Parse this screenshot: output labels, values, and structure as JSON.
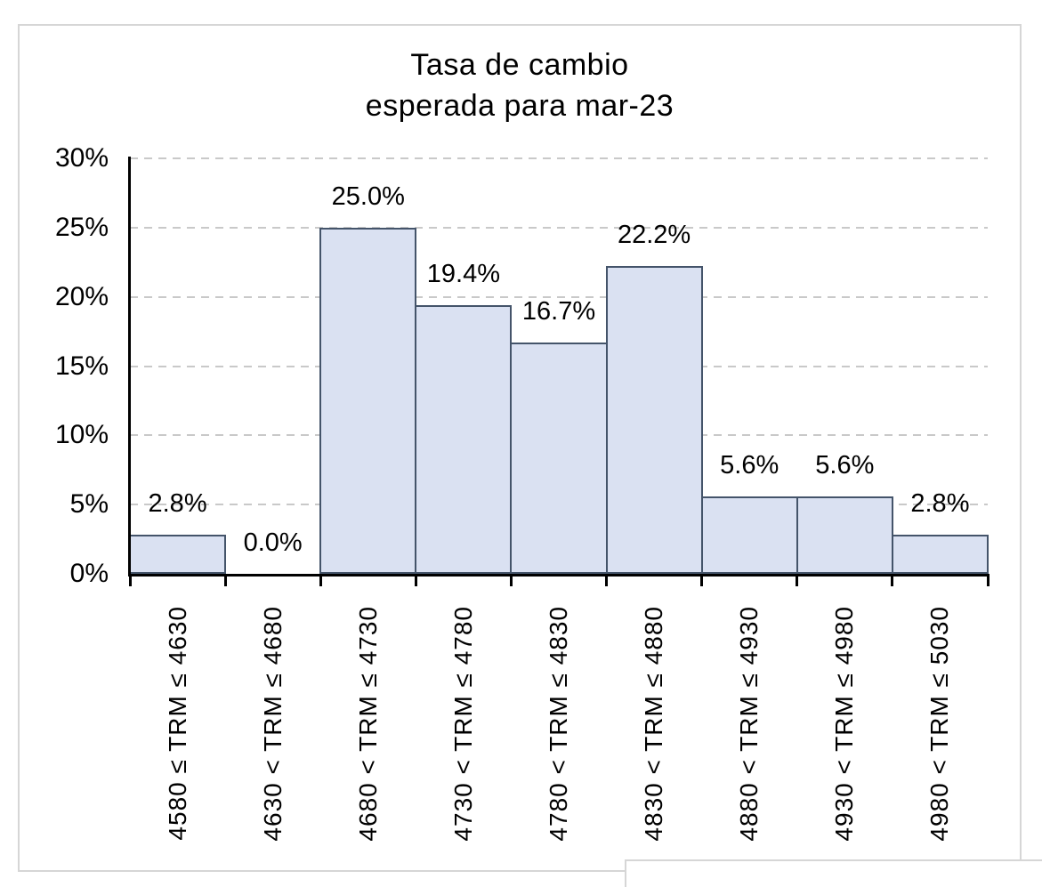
{
  "chart_data": {
    "type": "bar",
    "title": "Tasa de cambio esperada para mar-23",
    "title_lines": [
      "Tasa de cambio",
      "esperada para mar-23"
    ],
    "categories": [
      "4580 ≤ TRM ≤ 4630",
      "4630 < TRM ≤ 4680",
      "4680 < TRM ≤ 4730",
      "4730 < TRM ≤ 4780",
      "4780 < TRM ≤ 4830",
      "4830 < TRM ≤ 4880",
      "4880 < TRM ≤ 4930",
      "4930 < TRM ≤ 4980",
      "4980 < TRM ≤ 5030"
    ],
    "values": [
      2.8,
      0.0,
      25.0,
      19.4,
      16.7,
      22.2,
      5.6,
      5.6,
      2.8
    ],
    "value_labels": [
      "2.8%",
      "0.0%",
      "25.0%",
      "19.4%",
      "16.7%",
      "22.2%",
      "5.6%",
      "5.6%",
      "2.8%"
    ],
    "xlabel": "",
    "ylabel": "",
    "ylim": [
      0,
      30
    ],
    "y_tick_step": 5,
    "y_ticks": [
      "0%",
      "5%",
      "10%",
      "15%",
      "20%",
      "25%",
      "30%"
    ],
    "grid": "horizontal-dashed",
    "legend_position": "none",
    "colors": {
      "bar_fill": "#DAE1F2",
      "bar_border": "#44546A",
      "gridline": "#C9C9C9",
      "axis": "#000000",
      "frame_border": "#D6D6D6",
      "background": "#FFFFFF",
      "text": "#000000"
    }
  }
}
